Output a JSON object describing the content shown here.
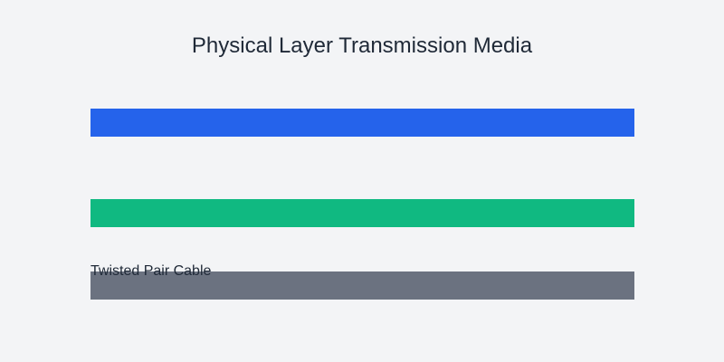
{
  "title": "Physical Layer Transmission Media",
  "media": [
    {
      "label": "",
      "color": "#2563eb"
    },
    {
      "label": "",
      "color": "#10b981"
    },
    {
      "label": "Twisted Pair Cable",
      "color": "#6b7280"
    }
  ]
}
